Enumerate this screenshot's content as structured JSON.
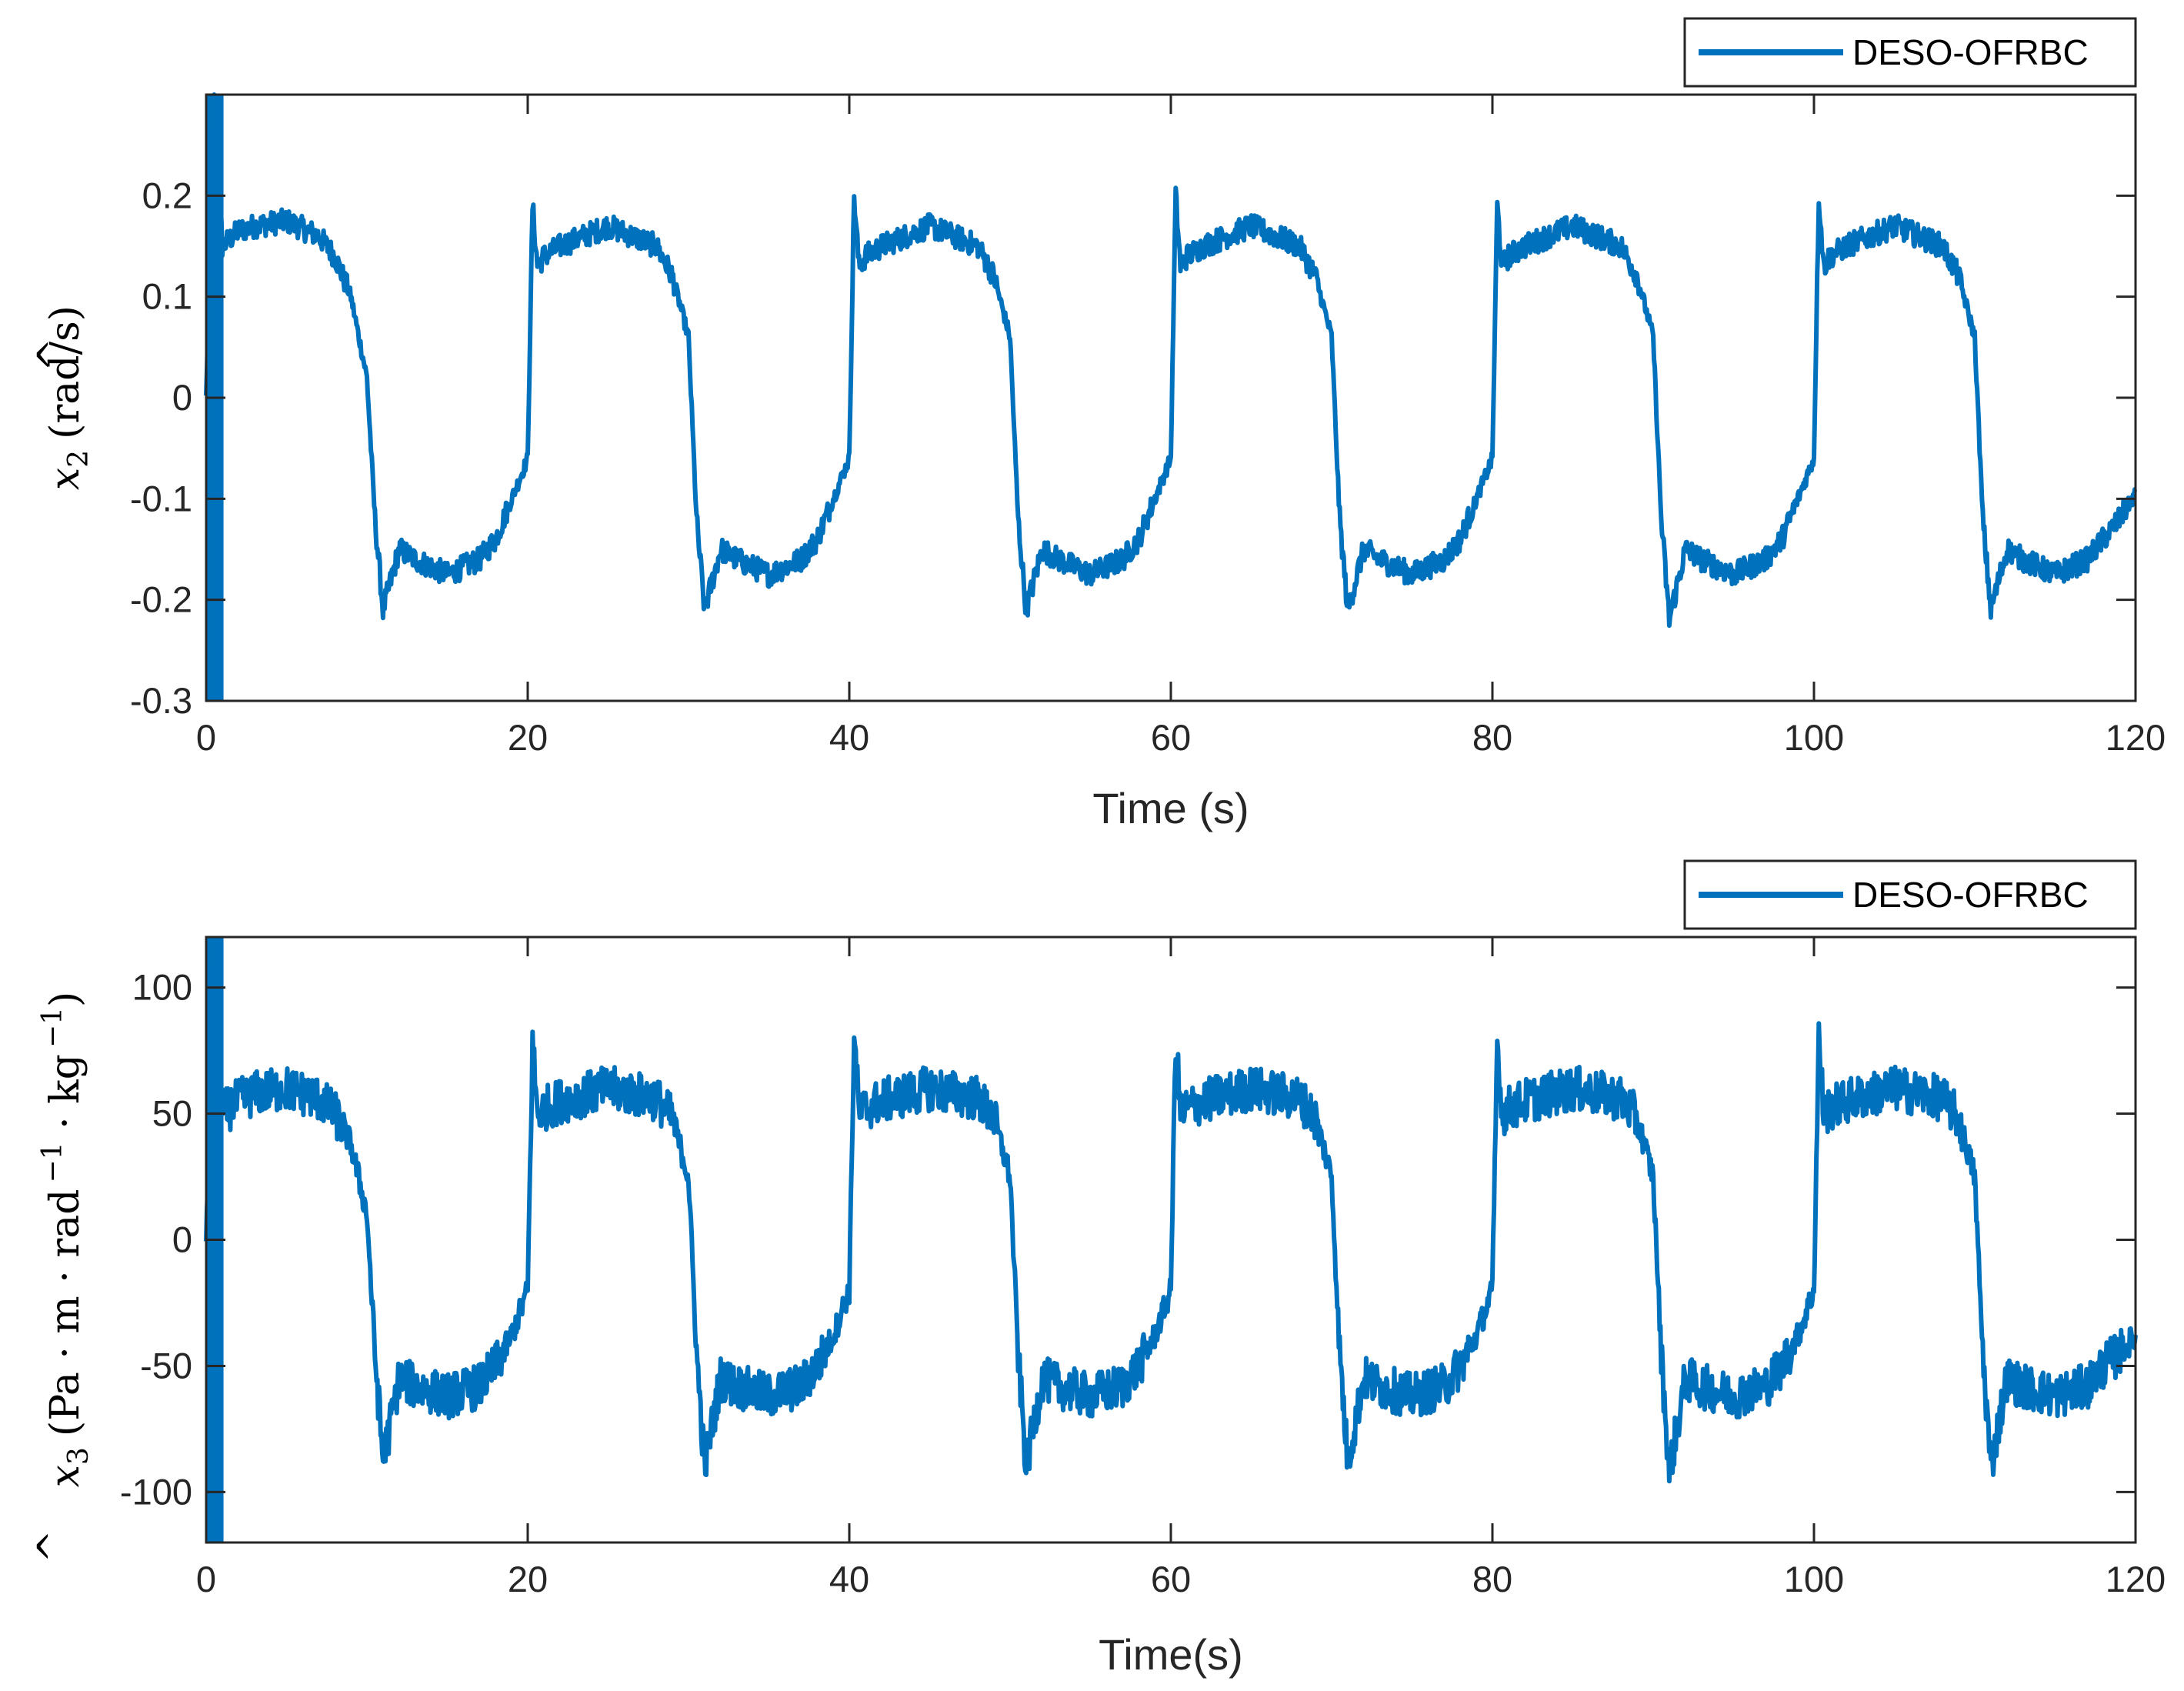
{
  "chart_data": [
    {
      "type": "line",
      "id": "top",
      "title": "",
      "xlabel": "Time (s)",
      "ylabel": {
        "base": "x",
        "sub": "2",
        "hat": true,
        "unit": "(rad/s)"
      },
      "xlim": [
        0,
        120
      ],
      "ylim": [
        -0.3,
        0.3
      ],
      "xticks": [
        0,
        20,
        40,
        60,
        80,
        100,
        120
      ],
      "xtick_labels": [
        "0",
        "20",
        "40",
        "60",
        "80",
        "100",
        "120"
      ],
      "yticks": [
        -0.3,
        -0.2,
        -0.1,
        0,
        0.1,
        0.2
      ],
      "ytick_labels": [
        "-0.3",
        "-0.2",
        "-0.1",
        "0",
        "0.1",
        "0.2"
      ],
      "grid": false,
      "legend": {
        "position": "top-right",
        "entries": [
          "DESO-OFRBC"
        ]
      },
      "series": [
        {
          "name": "DESO-OFRBC",
          "color": "#0072BD",
          "x": [
            0,
            0.5,
            1,
            2,
            3,
            5,
            7,
            8,
            9,
            10,
            10.5,
            11,
            12,
            13,
            15,
            17,
            18,
            19,
            20,
            20.3,
            20.6,
            21,
            22,
            25,
            28,
            29,
            30,
            30.5,
            31,
            32,
            33,
            35,
            37,
            38,
            39,
            40,
            40.3,
            40.6,
            41,
            42,
            45,
            48,
            49,
            50,
            50.5,
            51,
            52,
            53,
            55,
            57,
            58,
            59,
            60,
            60.3,
            60.6,
            61,
            62,
            65,
            68,
            69,
            70,
            70.5,
            71,
            72,
            73,
            75,
            77,
            78,
            79,
            80,
            80.3,
            80.6,
            81,
            82,
            85,
            88,
            89,
            90,
            90.5,
            91,
            92,
            93,
            95,
            97,
            98,
            99,
            100,
            100.3,
            100.6,
            101,
            102,
            105,
            108,
            109,
            110,
            110.5,
            111,
            112,
            113,
            115,
            117,
            118,
            119,
            120
          ],
          "y": [
            0,
            0.3,
            0.15,
            0.165,
            0.17,
            0.175,
            0.16,
            0.14,
            0.1,
            0.02,
            -0.12,
            -0.21,
            -0.15,
            -0.16,
            -0.175,
            -0.16,
            -0.14,
            -0.1,
            -0.06,
            0.19,
            0.13,
            0.14,
            0.15,
            0.17,
            0.15,
            0.12,
            0.06,
            -0.12,
            -0.21,
            -0.15,
            -0.16,
            -0.175,
            -0.16,
            -0.14,
            -0.1,
            -0.06,
            0.2,
            0.13,
            0.14,
            0.15,
            0.17,
            0.15,
            0.12,
            0.06,
            -0.12,
            -0.21,
            -0.15,
            -0.16,
            -0.175,
            -0.16,
            -0.14,
            -0.1,
            -0.06,
            0.2,
            0.13,
            0.14,
            0.15,
            0.17,
            0.15,
            0.12,
            0.06,
            -0.12,
            -0.21,
            -0.15,
            -0.16,
            -0.175,
            -0.16,
            -0.14,
            -0.1,
            -0.06,
            0.19,
            0.13,
            0.14,
            0.15,
            0.17,
            0.15,
            0.12,
            0.06,
            -0.12,
            -0.22,
            -0.15,
            -0.16,
            -0.175,
            -0.16,
            -0.14,
            -0.1,
            -0.06,
            0.2,
            0.13,
            0.14,
            0.15,
            0.17,
            0.15,
            0.12,
            0.06,
            -0.12,
            -0.21,
            -0.15,
            -0.16,
            -0.175,
            -0.16,
            -0.14,
            -0.12,
            -0.095
          ]
        }
      ]
    },
    {
      "type": "line",
      "id": "bottom",
      "title": "",
      "xlabel": "Time(s)",
      "ylabel": {
        "base": "x",
        "sub": "3",
        "hat": true,
        "unit": "(Pa · m · rad",
        "exp1": "−1",
        "mid": " · kg",
        "exp2": "−1",
        "close": ")"
      },
      "xlim": [
        0,
        120
      ],
      "ylim": [
        -120,
        120
      ],
      "xticks": [
        0,
        20,
        40,
        60,
        80,
        100,
        120
      ],
      "xtick_labels": [
        "0",
        "20",
        "40",
        "60",
        "80",
        "100",
        "120"
      ],
      "yticks": [
        -100,
        -50,
        0,
        50,
        100
      ],
      "ytick_labels": [
        "-100",
        "-50",
        "0",
        "50",
        "100"
      ],
      "grid": false,
      "legend": {
        "position": "top-right",
        "entries": [
          "DESO-OFRBC"
        ]
      },
      "series": [
        {
          "name": "DESO-OFRBC",
          "color": "#0072BD",
          "x": [
            0,
            0.5,
            1,
            2,
            3,
            5,
            7,
            8,
            9,
            10,
            10.5,
            11,
            12,
            13,
            15,
            17,
            18,
            19,
            20,
            20.3,
            20.6,
            21,
            22,
            25,
            28,
            29,
            30,
            30.5,
            31,
            32,
            33,
            35,
            37,
            38,
            39,
            40,
            40.3,
            40.6,
            41,
            42,
            45,
            48,
            49,
            50,
            50.5,
            51,
            52,
            53,
            55,
            57,
            58,
            59,
            60,
            60.3,
            60.6,
            61,
            62,
            65,
            68,
            69,
            70,
            70.5,
            71,
            72,
            73,
            75,
            77,
            78,
            79,
            80,
            80.3,
            80.6,
            81,
            82,
            85,
            88,
            89,
            90,
            90.5,
            91,
            92,
            93,
            95,
            97,
            98,
            99,
            100,
            100.3,
            100.6,
            101,
            102,
            105,
            108,
            109,
            110,
            110.5,
            111,
            112,
            113,
            115,
            117,
            118,
            119,
            120
          ],
          "y": [
            0,
            120,
            50,
            55,
            58,
            60,
            56,
            50,
            38,
            10,
            -45,
            -88,
            -55,
            -58,
            -62,
            -58,
            -50,
            -38,
            -20,
            78,
            50,
            52,
            55,
            60,
            56,
            48,
            25,
            -45,
            -90,
            -55,
            -58,
            -62,
            -58,
            -50,
            -38,
            -20,
            82,
            50,
            52,
            55,
            60,
            56,
            48,
            25,
            -45,
            -90,
            -55,
            -58,
            -62,
            -58,
            -50,
            -38,
            -20,
            80,
            50,
            52,
            55,
            60,
            56,
            48,
            25,
            -45,
            -88,
            -55,
            -58,
            -62,
            -58,
            -50,
            -38,
            -20,
            78,
            50,
            52,
            55,
            60,
            56,
            48,
            25,
            -45,
            -92,
            -55,
            -58,
            -62,
            -58,
            -50,
            -38,
            -20,
            80,
            50,
            52,
            55,
            60,
            56,
            48,
            25,
            -45,
            -90,
            -55,
            -58,
            -62,
            -58,
            -50,
            -45,
            -38
          ]
        }
      ]
    }
  ]
}
